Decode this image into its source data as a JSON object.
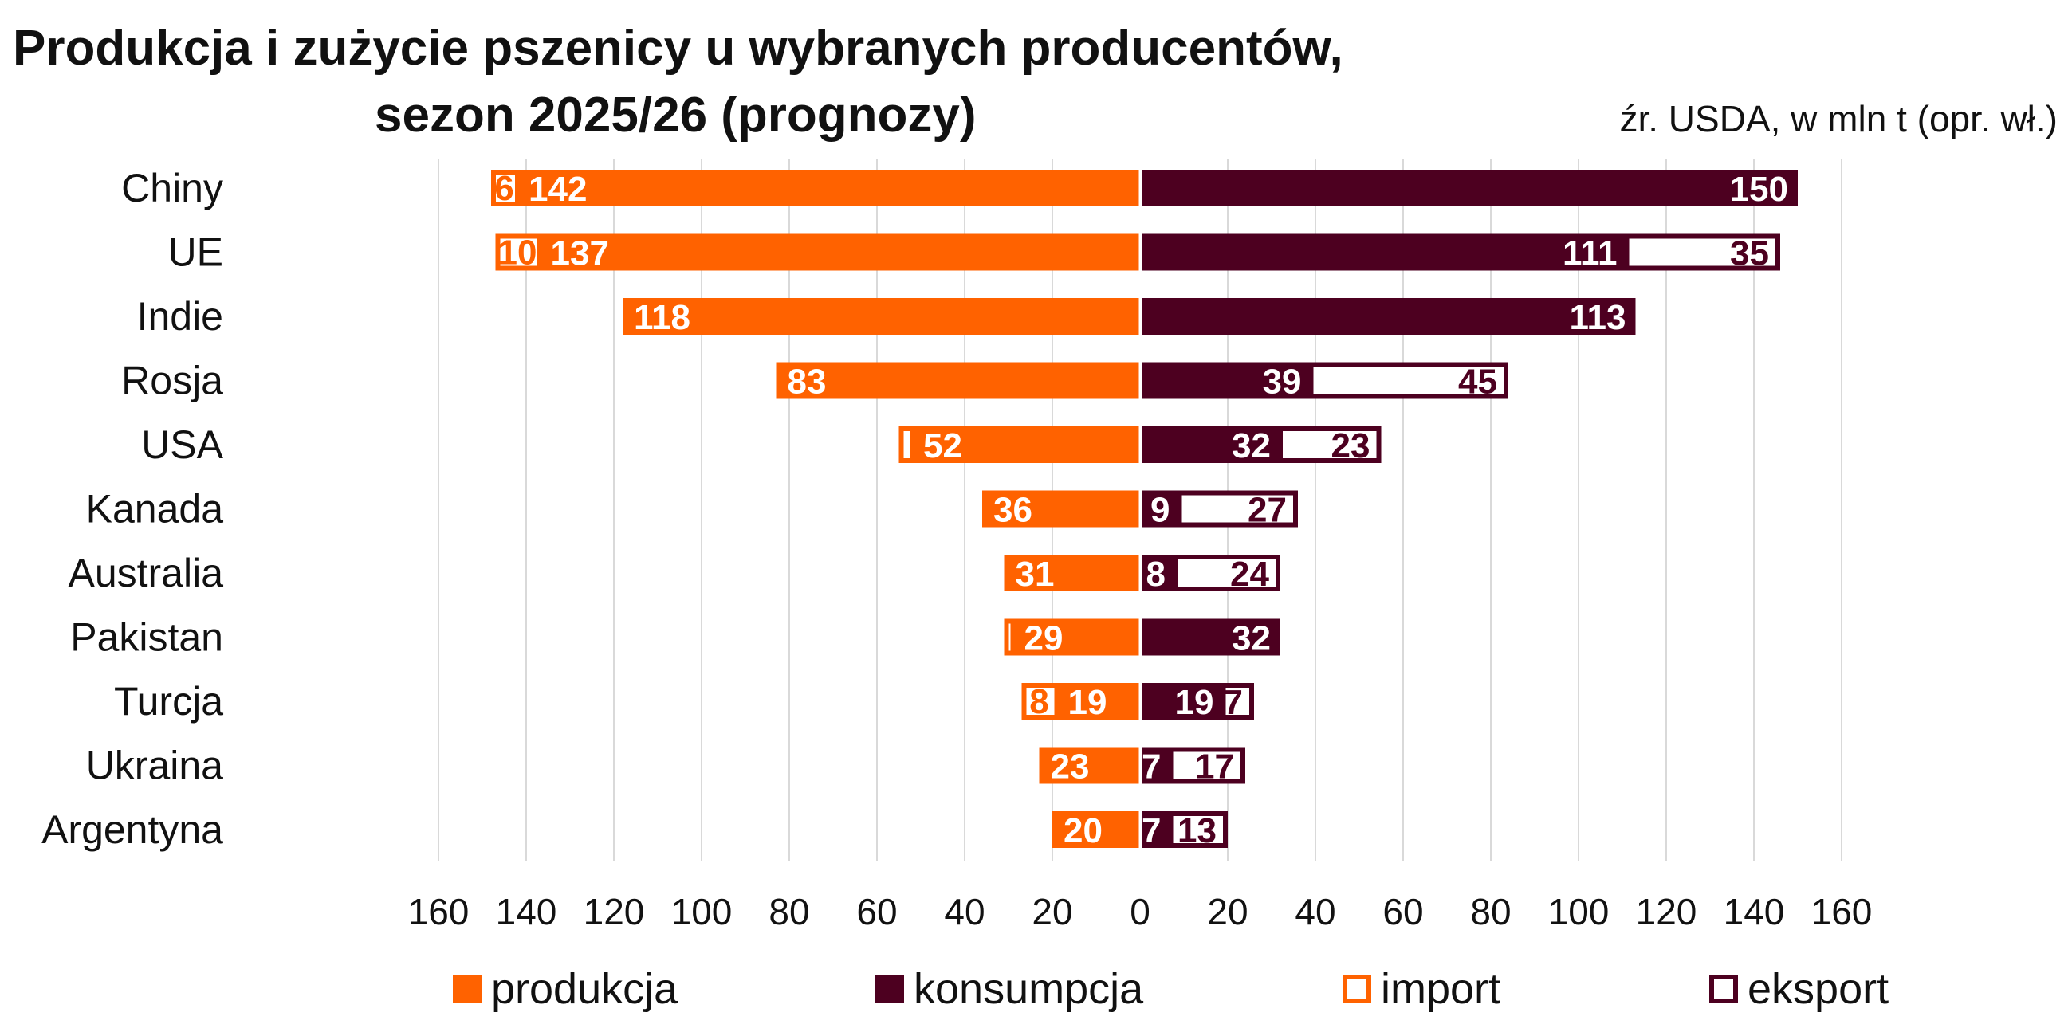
{
  "title_line1": "Produkcja i zużycie pszenicy u wybranych producentów,",
  "title_line2": "sezon 2025/26 (prognozy)",
  "source": "źr. USDA, w mln t (opr. wł.)",
  "colors": {
    "produkcja": "#FF6200",
    "konsumpcja": "#4D0020",
    "grid": "#d9d9d9"
  },
  "legend": {
    "produkcja": "produkcja",
    "konsumpcja": "konsumpcja",
    "import": "import",
    "eksport": "eksport"
  },
  "chart_data": {
    "type": "bar",
    "orientation": "horizontal-butterfly",
    "categories": [
      "Chiny",
      "UE",
      "Indie",
      "Rosja",
      "USA",
      "Kanada",
      "Australia",
      "Pakistan",
      "Turcja",
      "Ukraina",
      "Argentyna"
    ],
    "x_ticks": [
      "160",
      "140",
      "120",
      "100",
      "80",
      "60",
      "40",
      "20",
      "0",
      "20",
      "40",
      "60",
      "80",
      "100",
      "120",
      "140",
      "160"
    ],
    "xlim": [
      -160,
      160
    ],
    "grid": true,
    "legend_position": "bottom",
    "series": [
      {
        "name": "produkcja",
        "side": "left",
        "values": [
          142,
          137,
          118,
          83,
          52,
          36,
          31,
          29,
          19,
          23,
          20
        ]
      },
      {
        "name": "import",
        "side": "left",
        "values": [
          6,
          10,
          0,
          0,
          3,
          0,
          0,
          2,
          8,
          0,
          0
        ]
      },
      {
        "name": "konsumpcja",
        "side": "right",
        "values": [
          150,
          111,
          113,
          39,
          32,
          9,
          8,
          32,
          19,
          7,
          7
        ]
      },
      {
        "name": "eksport",
        "side": "right",
        "values": [
          0,
          35,
          0,
          45,
          23,
          27,
          24,
          0,
          7,
          17,
          13
        ]
      }
    ],
    "import_labels": [
      "6",
      "10",
      "",
      "",
      "",
      "",
      "",
      "",
      "8",
      "",
      ""
    ],
    "eksport_labels": [
      "",
      "35",
      "",
      "45",
      "23",
      "27",
      "24",
      "",
      "7",
      "17",
      "13"
    ]
  }
}
